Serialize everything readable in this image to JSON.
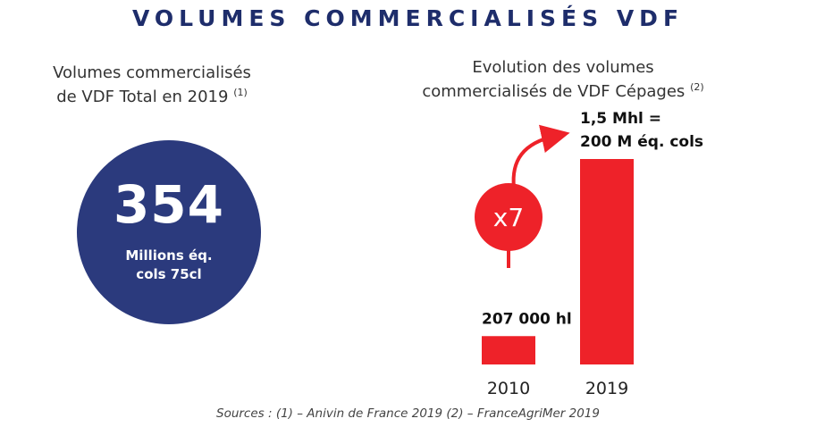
{
  "title": "VOLUMES COMMERCIALISÉS VDF",
  "left_panel": {
    "caption_line1": "Volumes commercialisés",
    "caption_line2": "de VDF Total en 2019",
    "caption_ref": "(1)",
    "value": "354",
    "unit_line1": "Millions éq.",
    "unit_line2": "cols 75cl"
  },
  "right_panel": {
    "caption_line1": "Evolution des volumes",
    "caption_line2": "commercialisés de VDF Cépages",
    "caption_ref": "(2)"
  },
  "chart_data": {
    "type": "bar",
    "categories": [
      "2010",
      "2019"
    ],
    "values": [
      207000,
      1500000
    ],
    "unit": "hl",
    "data_labels": [
      "207 000 hl",
      "1,5 Mhl =\n200 M éq. cols"
    ],
    "annotation": "x7",
    "bar_color": "#ee2229",
    "grid": false,
    "legend": "none"
  },
  "colors": {
    "navy": "#2b3a7d",
    "red": "#ee2229"
  },
  "source": "Sources : (1) – Anivin de France 2019 (2) – FranceAgriMer 2019"
}
